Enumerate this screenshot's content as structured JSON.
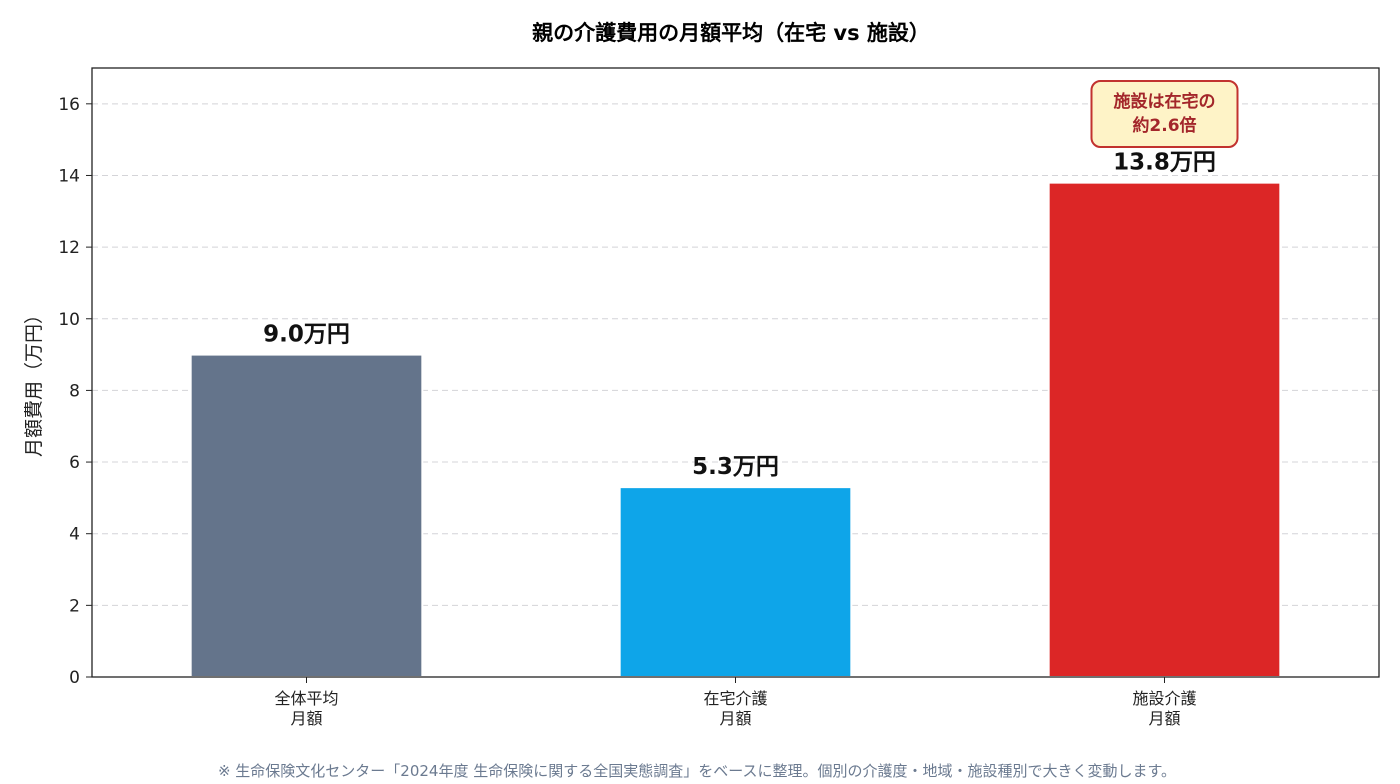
{
  "chart_data": {
    "type": "bar",
    "title": "親の介護費用の月額平均（在宅 vs 施設）",
    "ylabel": "月額費用（万円）",
    "xlabel": "",
    "ylim": [
      0,
      17
    ],
    "yticks": [
      0,
      2,
      4,
      6,
      8,
      10,
      12,
      14,
      16
    ],
    "grid": "y-dashed",
    "categories": [
      [
        "全体平均",
        "月額"
      ],
      [
        "在宅介護",
        "月額"
      ],
      [
        "施設介護",
        "月額"
      ]
    ],
    "values": [
      9.0,
      5.3,
      13.8
    ],
    "value_labels": [
      "9.0万円",
      "5.3万円",
      "13.8万円"
    ],
    "colors": [
      "#64748b",
      "#0ea5e9",
      "#dc2626"
    ],
    "annotation": {
      "category_index": 2,
      "lines": [
        "施設は在宅の",
        "約2.6倍"
      ],
      "text_color": "#a3262a",
      "background": "#fef3c7",
      "border": "#c2322f"
    }
  },
  "source_note": "※ 生命保険文化センター「2024年度 生命保険に関する全国実態調査」をベースに整理。個別の介護度・地域・施設種別で大きく変動します。"
}
